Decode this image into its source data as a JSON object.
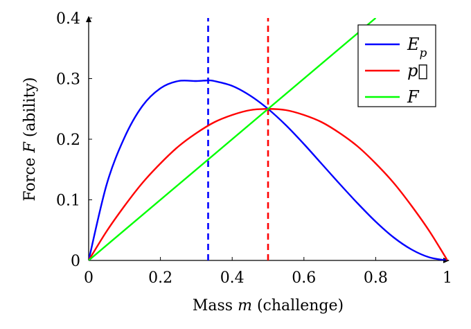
{
  "chart_data": {
    "type": "line",
    "title": "",
    "xlabel": "Mass m (challenge)",
    "ylabel": "Force F (ability)",
    "xlim": [
      0,
      1
    ],
    "ylim": [
      0,
      0.4
    ],
    "x_ticks": [
      "0",
      "0.2",
      "0.4",
      "0.6",
      "0.8",
      "1"
    ],
    "y_ticks": [
      "0",
      "0.1",
      "0.2",
      "0.3",
      "0.4"
    ],
    "grid": false,
    "legend_position": "top-right",
    "series": [
      {
        "name": "E_p",
        "color": "#0000ff",
        "x": [
          0,
          0.05,
          0.1,
          0.15,
          0.2,
          0.25,
          0.3,
          0.333,
          0.35,
          0.4,
          0.45,
          0.5,
          0.55,
          0.6,
          0.65,
          0.7,
          0.75,
          0.8,
          0.85,
          0.9,
          0.95,
          1
        ],
        "y": [
          0,
          0.125,
          0.203,
          0.255,
          0.284,
          0.296,
          0.296,
          0.297,
          0.296,
          0.288,
          0.272,
          0.25,
          0.223,
          0.192,
          0.159,
          0.126,
          0.094,
          0.064,
          0.038,
          0.018,
          0.005,
          0
        ]
      },
      {
        "name": "p⃗",
        "color": "#ff0000",
        "x": [
          0,
          0.05,
          0.1,
          0.15,
          0.2,
          0.25,
          0.3,
          0.35,
          0.4,
          0.45,
          0.5,
          0.55,
          0.6,
          0.65,
          0.7,
          0.75,
          0.8,
          0.85,
          0.9,
          0.95,
          1
        ],
        "y": [
          0,
          0.048,
          0.09,
          0.128,
          0.16,
          0.188,
          0.21,
          0.228,
          0.24,
          0.248,
          0.25,
          0.248,
          0.24,
          0.228,
          0.21,
          0.188,
          0.16,
          0.128,
          0.09,
          0.048,
          0
        ]
      },
      {
        "name": "F",
        "color": "#00ff00",
        "x": [
          0,
          0.8
        ],
        "y": [
          0,
          0.4
        ]
      }
    ],
    "vertical_lines": [
      {
        "x": 0.333,
        "color": "#0000ff",
        "style": "dashed"
      },
      {
        "x": 0.5,
        "color": "#ff0000",
        "style": "dashed"
      }
    ]
  }
}
